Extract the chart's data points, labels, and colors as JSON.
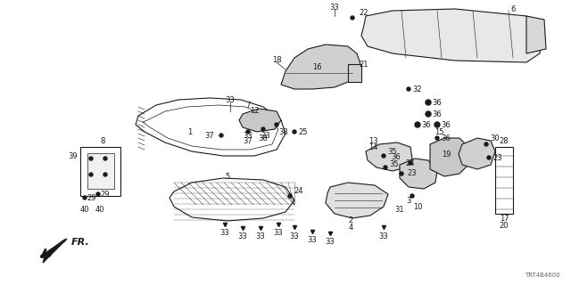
{
  "bg_color": "#ffffff",
  "line_color": "#1a1a1a",
  "fig_width": 6.4,
  "fig_height": 3.2,
  "dpi": 100,
  "diagram_code": "TRT4B4600"
}
